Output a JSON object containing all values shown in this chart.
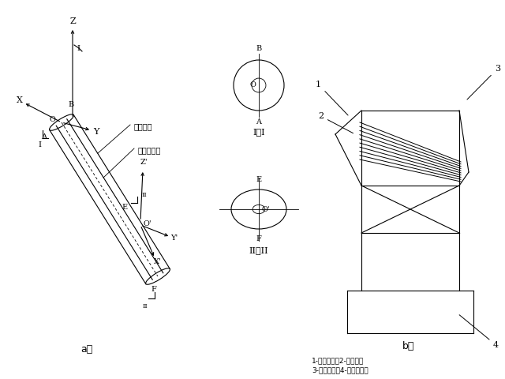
{
  "bg_color": "#ffffff",
  "line_color": "#000000",
  "fig_label_a": "a）",
  "fig_label_b": "b）",
  "caption_line1": "1-拉索导管；2-固定架；",
  "caption_line2": "3-劲性骨架；4-已浇索塔。",
  "label_lasuo": "拉索导管",
  "label_maoguo": "锚固中心线"
}
